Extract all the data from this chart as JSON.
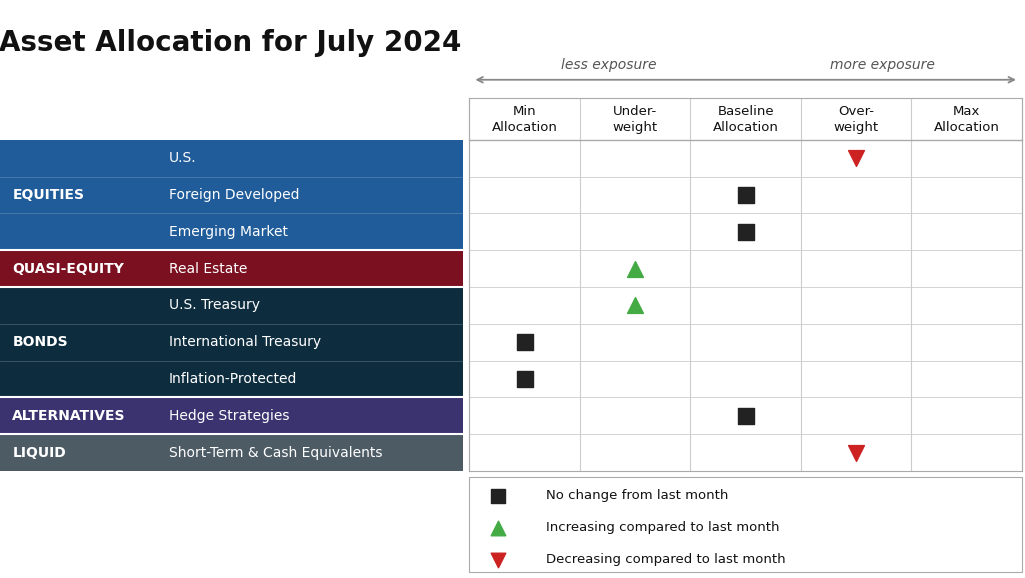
{
  "title": "Asset Allocation for July 2024",
  "title_fontsize": 20,
  "categories": [
    {
      "label": "EQUITIES",
      "color": "#1F5C99",
      "sub": [
        "U.S.",
        "Foreign Developed",
        "Emerging Market"
      ]
    },
    {
      "label": "QUASI-EQUITY",
      "color": "#7B1020",
      "sub": [
        "Real Estate"
      ]
    },
    {
      "label": "BONDS",
      "color": "#0D2D3F",
      "sub": [
        "U.S. Treasury",
        "International Treasury",
        "Inflation-Protected"
      ]
    },
    {
      "label": "ALTERNATIVES",
      "color": "#3B3270",
      "sub": [
        "Hedge Strategies"
      ]
    },
    {
      "label": "LIQUID",
      "color": "#4D5B65",
      "sub": [
        "Short-Term & Cash Equivalents"
      ]
    }
  ],
  "col_headers": [
    "Min\nAllocation",
    "Under-\nweight",
    "Baseline\nAllocation",
    "Over-\nweight",
    "Max\nAllocation"
  ],
  "arrow_label_left": "less exposure",
  "arrow_label_right": "more exposure",
  "markers": {
    "U.S.": {
      "col": 3,
      "type": "down_triangle",
      "color": "#CC2222"
    },
    "Foreign Developed": {
      "col": 2,
      "type": "square",
      "color": "#222222"
    },
    "Emerging Market": {
      "col": 2,
      "type": "square",
      "color": "#222222"
    },
    "Real Estate": {
      "col": 1,
      "type": "up_triangle",
      "color": "#44AA44"
    },
    "U.S. Treasury": {
      "col": 1,
      "type": "up_triangle",
      "color": "#44AA44"
    },
    "International Treasury": {
      "col": 0,
      "type": "square",
      "color": "#222222"
    },
    "Inflation-Protected": {
      "col": 0,
      "type": "square",
      "color": "#222222"
    },
    "Hedge Strategies": {
      "col": 2,
      "type": "square",
      "color": "#222222"
    },
    "Short-Term & Cash Equivalents": {
      "col": 3,
      "type": "down_triangle",
      "color": "#CC2222"
    }
  },
  "legend_items": [
    {
      "type": "square",
      "color": "#222222",
      "label": "No change from last month"
    },
    {
      "type": "up_triangle",
      "color": "#44AA44",
      "label": "Increasing compared to last month"
    },
    {
      "type": "down_triangle",
      "color": "#CC2222",
      "label": "Decreasing compared to last month"
    }
  ],
  "grid_color": "#CCCCCC",
  "bg_color": "#FFFFFF",
  "num_cols": 5
}
